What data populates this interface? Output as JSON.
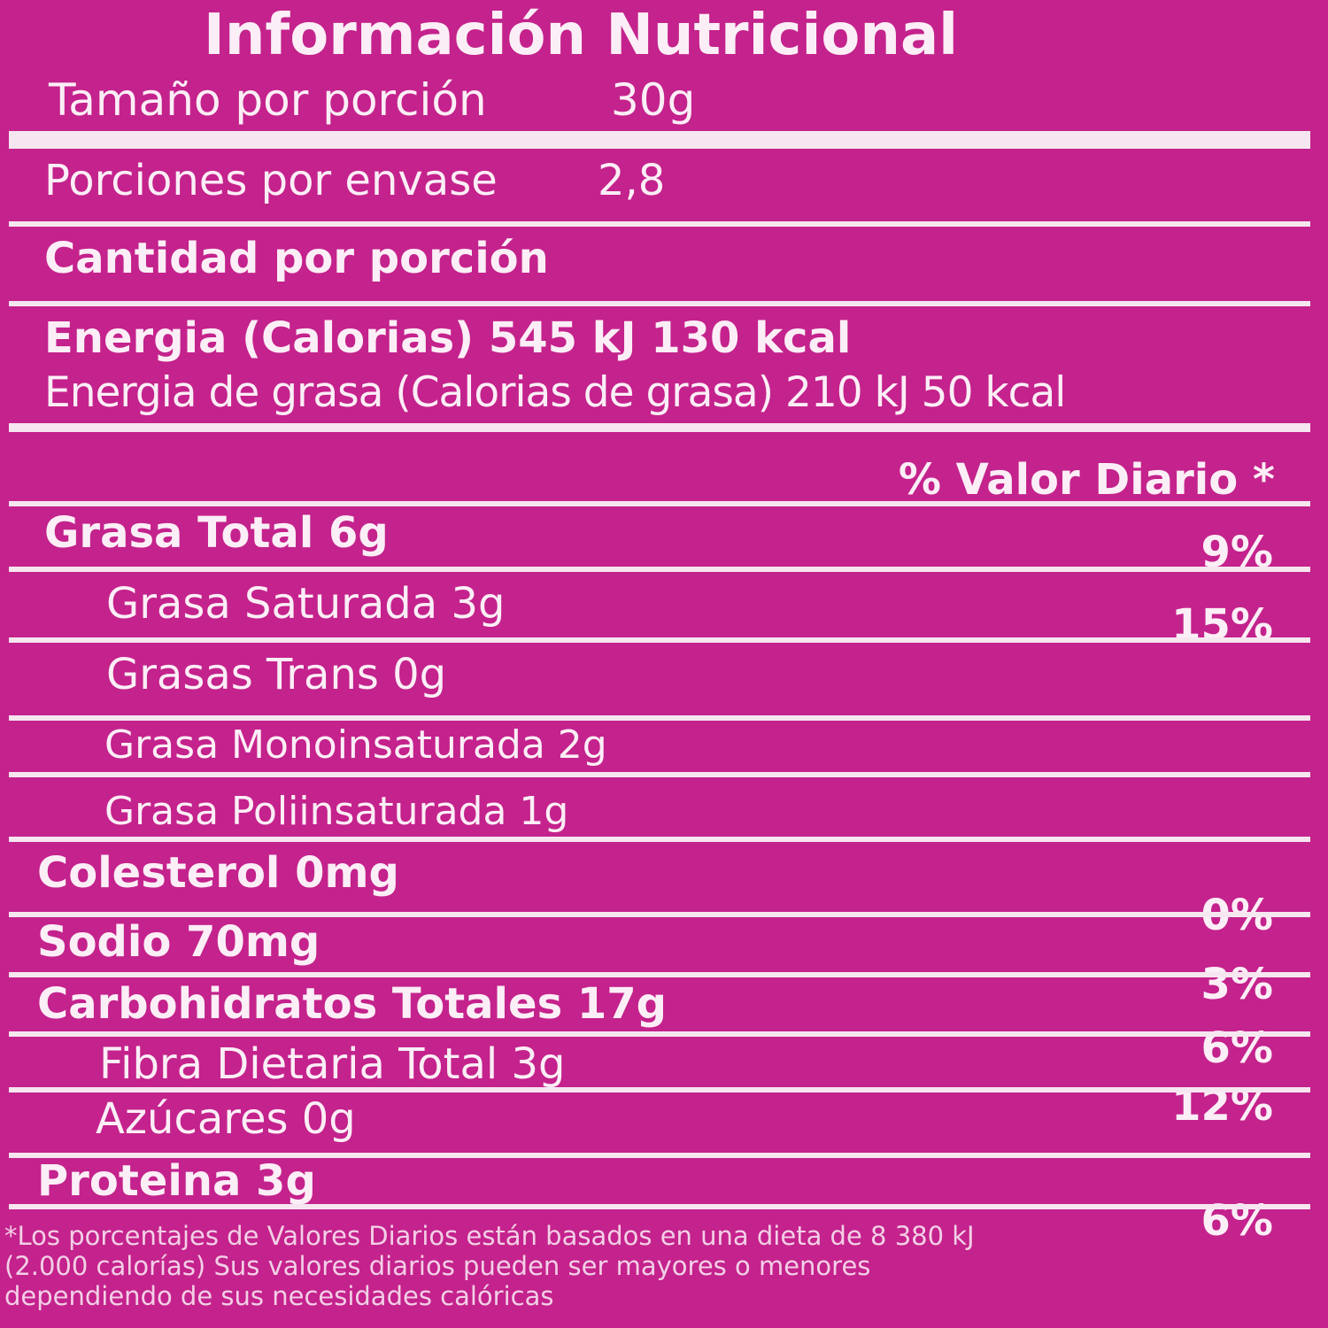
{
  "header": {
    "title": "Información Nutricional"
  },
  "serving": {
    "size_label": "Tamaño por porción",
    "size": "30g",
    "per_pack_label": "Porciones por envase",
    "per_pack": "2,8"
  },
  "amount_header": "Cantidad por porción",
  "energy": {
    "main": "Energia (Calorias) 545 kJ  130 kcal",
    "fat": "Energia de grasa (Calorias de grasa) 210 kJ 50 kcal"
  },
  "dv_header": "% Valor Diario *",
  "nutrients": [
    {
      "label": "Grasa Total 6g",
      "dv": "9%"
    },
    {
      "label": "Grasa Saturada 3g",
      "dv": "15%"
    },
    {
      "label": "Grasas Trans 0g"
    },
    {
      "label": "Grasa Monoinsaturada 2g"
    },
    {
      "label": "Grasa Poliinsaturada 1g"
    },
    {
      "label": "Colesterol 0mg",
      "dv": "0%"
    },
    {
      "label": "Sodio 70mg",
      "dv": "3%"
    },
    {
      "label": "Carbohidratos Totales 17g",
      "dv": "6%"
    },
    {
      "label": "Fibra Dietaria Total 3g",
      "dv": "12%"
    },
    {
      "label": "Azúcares 0g"
    },
    {
      "label": "Proteina 3g",
      "dv": "6%"
    }
  ],
  "footnote": [
    "*Los porcentajes de Valores Diarios están basados en una dieta de 8 380 kJ",
    "(2.000 calorías) Sus valores diarios pueden ser mayores o menores",
    "dependiendo de sus necesidades calóricas"
  ]
}
